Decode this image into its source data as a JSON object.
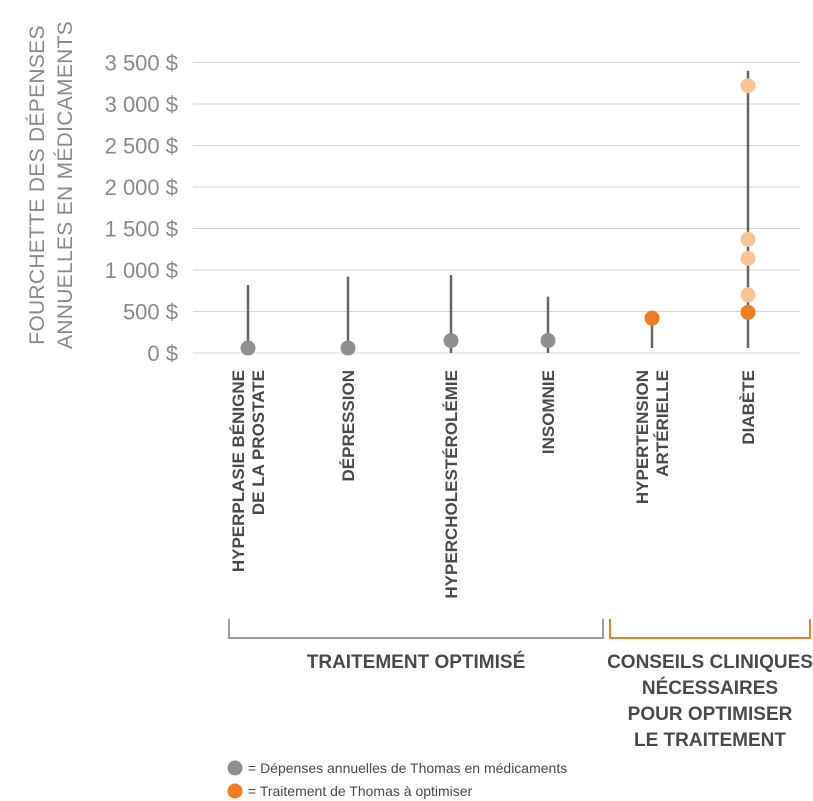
{
  "chart_data": {
    "type": "scatter",
    "ylabel": [
      "FOURCHETTE DES DÉPENSES",
      "ANNUELLES EN MÉDICAMENTS"
    ],
    "ylim": [
      0,
      3500
    ],
    "yticks": [
      0,
      500,
      1000,
      1500,
      2000,
      2500,
      3000,
      3500
    ],
    "ytick_labels": [
      "0 $",
      "500 $",
      "1 000 $",
      "1 500 $",
      "2 000 $",
      "2 500 $",
      "3 000 $",
      "3 500 $"
    ],
    "grid": true,
    "categories": [
      {
        "id": "hbp",
        "label_lines": [
          "HYPERPLASIE BÉNIGNE",
          "DE LA PROSTATE"
        ],
        "range": [
          0,
          820
        ],
        "points": [
          {
            "value": 60,
            "status": "optimise"
          }
        ]
      },
      {
        "id": "depression",
        "label_lines": [
          "DÉPRESSION"
        ],
        "range": [
          0,
          920
        ],
        "points": [
          {
            "value": 60,
            "status": "optimise"
          }
        ]
      },
      {
        "id": "hypercholesterolemie",
        "label_lines": [
          "HYPERCHOLESTÉROLÉMIE"
        ],
        "range": [
          0,
          940
        ],
        "points": [
          {
            "value": 150,
            "status": "optimise"
          }
        ]
      },
      {
        "id": "insomnie",
        "label_lines": [
          "INSOMNIE"
        ],
        "range": [
          0,
          680
        ],
        "points": [
          {
            "value": 150,
            "status": "optimise"
          }
        ]
      },
      {
        "id": "hypertension",
        "label_lines": [
          "HYPERTENSION",
          "ARTÉRIELLE"
        ],
        "range": [
          60,
          420
        ],
        "points": [
          {
            "value": 420,
            "status": "a_optimiser"
          }
        ]
      },
      {
        "id": "diabete",
        "label_lines": [
          "DIABÈTE"
        ],
        "range": [
          60,
          3400
        ],
        "points": [
          {
            "value": 3220,
            "status": "possible"
          },
          {
            "value": 1370,
            "status": "possible"
          },
          {
            "value": 1140,
            "status": "possible"
          },
          {
            "value": 700,
            "status": "possible"
          },
          {
            "value": 490,
            "status": "a_optimiser"
          }
        ]
      }
    ],
    "groups": [
      {
        "label_lines": [
          "TRAITEMENT OPTIMISÉ"
        ],
        "color": "#9b9b9b",
        "from": 0,
        "to": 3
      },
      {
        "label_lines": [
          "CONSEILS CLINIQUES",
          "NÉCESSAIRES",
          "POUR OPTIMISER",
          "LE TRAITEMENT"
        ],
        "color": "#e8812f",
        "from": 4,
        "to": 5
      }
    ],
    "legend": [
      {
        "marker_color": "#8f8f8f",
        "label": "= Dépenses annuelles de Thomas en médicaments"
      },
      {
        "marker_color": "#f07d22",
        "label": "= Traitement de Thomas à optimiser"
      }
    ]
  },
  "colors": {
    "grid": "#d5d5d5",
    "range_line": "#666666",
    "optimise": "#8f8f8f",
    "a_optimiser": "#f07d22",
    "possible": "#f9c597"
  }
}
